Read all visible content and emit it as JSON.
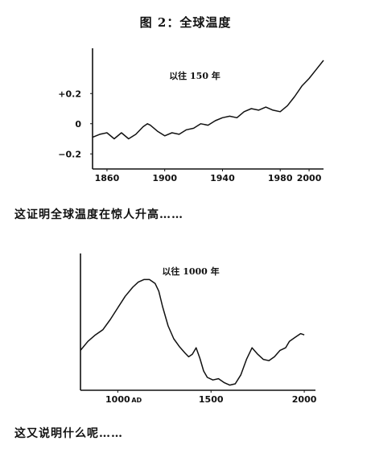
{
  "title": "图 2：全球温度",
  "captions": {
    "first": "这证明全球温度在惊人升高……",
    "second": "这又说明什么呢……"
  },
  "chart_data": [
    {
      "type": "line",
      "title": "",
      "annotation": "以往 150 年",
      "xlabel": "",
      "ylabel": "",
      "xlim": [
        1850,
        2010
      ],
      "ylim": [
        -0.3,
        0.5
      ],
      "x_ticks": [
        1860,
        1900,
        1940,
        1980,
        2000
      ],
      "x_tick_labels": [
        "1860",
        "1900",
        "1940",
        "1980",
        "2000"
      ],
      "y_ticks": [
        0.2,
        0,
        -0.2
      ],
      "y_tick_labels": [
        "+0.2",
        "0",
        "−0.2"
      ],
      "grid": false,
      "series": [
        {
          "x": [
            1850,
            1855,
            1860,
            1865,
            1870,
            1875,
            1880,
            1885,
            1888,
            1890,
            1895,
            1900,
            1905,
            1910,
            1915,
            1920,
            1925,
            1930,
            1935,
            1940,
            1945,
            1950,
            1955,
            1960,
            1965,
            1970,
            1975,
            1980,
            1985,
            1990,
            1995,
            2000,
            2005,
            2010
          ],
          "y": [
            -0.09,
            -0.07,
            -0.06,
            -0.1,
            -0.06,
            -0.1,
            -0.07,
            -0.02,
            0.0,
            -0.01,
            -0.05,
            -0.08,
            -0.06,
            -0.07,
            -0.04,
            -0.03,
            0.0,
            -0.01,
            0.02,
            0.04,
            0.05,
            0.04,
            0.08,
            0.1,
            0.09,
            0.11,
            0.09,
            0.08,
            0.12,
            0.18,
            0.25,
            0.3,
            0.36,
            0.42
          ]
        }
      ]
    },
    {
      "type": "line",
      "title": "",
      "annotation": "以往 1000 年",
      "xlabel": "",
      "ylabel": "",
      "xlim": [
        800,
        2060
      ],
      "ylim": [
        0,
        10
      ],
      "x_ticks": [
        1000,
        1500,
        2000
      ],
      "x_tick_labels": [
        "1000",
        "1500",
        "2000"
      ],
      "x_tick_suffixes": [
        "AD",
        "",
        ""
      ],
      "y_ticks": [],
      "grid": false,
      "series": [
        {
          "x": [
            800,
            840,
            880,
            920,
            960,
            1000,
            1040,
            1080,
            1110,
            1140,
            1170,
            1200,
            1220,
            1240,
            1270,
            1300,
            1330,
            1360,
            1380,
            1400,
            1420,
            1440,
            1460,
            1480,
            1510,
            1540,
            1570,
            1600,
            1630,
            1660,
            1690,
            1720,
            1750,
            1780,
            1810,
            1840,
            1870,
            1900,
            1920,
            1950,
            1980,
            2000
          ],
          "y": [
            3.1,
            3.8,
            4.3,
            4.7,
            5.5,
            6.4,
            7.3,
            8.0,
            8.4,
            8.6,
            8.6,
            8.3,
            7.7,
            6.5,
            5.0,
            4.0,
            3.4,
            2.9,
            2.6,
            2.8,
            3.3,
            2.5,
            1.5,
            1.0,
            0.8,
            0.9,
            0.6,
            0.4,
            0.5,
            1.2,
            2.4,
            3.3,
            2.8,
            2.4,
            2.3,
            2.6,
            3.1,
            3.3,
            3.8,
            4.1,
            4.4,
            4.3
          ]
        }
      ]
    }
  ]
}
